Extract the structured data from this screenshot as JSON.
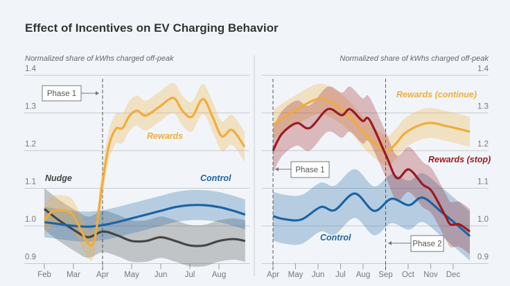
{
  "title": "Effect of Incentives on EV Charging Behavior",
  "colors": {
    "rewards": "#f0ac3a",
    "rewards_stop": "#9a1b20",
    "control": "#1b64a4",
    "nudge": "#454545",
    "background": "#f1f5f9"
  },
  "chart_data": [
    {
      "type": "line",
      "ylabel": "Normalized share of kWhs charged off-peak",
      "ylim": [
        0.9,
        1.4
      ],
      "yticks": [
        "1.4",
        "1.3",
        "1.2",
        "1.1",
        "1.0",
        "0.9"
      ],
      "xticks": [
        "Feb",
        "Mar",
        "Apr",
        "May",
        "Jun",
        "Jul",
        "Aug"
      ],
      "grid": true,
      "annotations": [
        {
          "label": "Phase 1",
          "at": "Apr"
        }
      ],
      "series": [
        {
          "name": "Nudge",
          "color": "#454545",
          "band": 0.055,
          "x": [
            2.0,
            2.5,
            3.0,
            3.5,
            4.0,
            4.5,
            5.0,
            5.5,
            6.0,
            6.5,
            7.0,
            7.5,
            8.0,
            8.5,
            8.9
          ],
          "y": [
            1.045,
            1.015,
            0.99,
            0.97,
            0.985,
            0.975,
            0.96,
            0.96,
            0.97,
            0.96,
            0.948,
            0.948,
            0.96,
            0.965,
            0.96
          ]
        },
        {
          "name": "Control",
          "color": "#1b64a4",
          "band": 0.04,
          "x": [
            2.0,
            2.5,
            3.0,
            3.5,
            4.0,
            4.5,
            5.0,
            5.5,
            6.0,
            6.5,
            7.0,
            7.5,
            8.0,
            8.5,
            8.9
          ],
          "y": [
            1.01,
            1.005,
            1.0,
            0.998,
            1.002,
            1.01,
            1.02,
            1.03,
            1.04,
            1.05,
            1.055,
            1.055,
            1.05,
            1.04,
            1.03
          ]
        },
        {
          "name": "Rewards",
          "color": "#f0ac3a",
          "band": 0.04,
          "x": [
            2.0,
            2.31,
            2.86,
            3.1,
            3.52,
            3.74,
            3.98,
            4.21,
            4.45,
            4.69,
            4.93,
            5.19,
            5.48,
            5.95,
            6.43,
            6.74,
            7.07,
            7.45,
            7.79,
            8.1,
            8.45,
            8.88
          ],
          "y": [
            1.013,
            1.04,
            1.037,
            1.013,
            0.952,
            0.97,
            1.105,
            1.21,
            1.257,
            1.26,
            1.293,
            1.306,
            1.293,
            1.316,
            1.34,
            1.306,
            1.29,
            1.337,
            1.288,
            1.238,
            1.255,
            1.21
          ]
        }
      ]
    },
    {
      "type": "line",
      "ylabel": "Normalized share of kWhs charged off-peak",
      "ylim": [
        0.9,
        1.4
      ],
      "yticks": [
        "1.4",
        "1.3",
        "1.2",
        "1.1",
        "1.0",
        "0.9"
      ],
      "xticks": [
        "Apr",
        "May",
        "Jun",
        "Jul",
        "Aug",
        "Sep",
        "Oct",
        "Nov",
        "Dec"
      ],
      "grid": true,
      "annotations": [
        {
          "label": "Phase 1",
          "at": "Apr"
        },
        {
          "label": "Phase 2",
          "at": "Sep"
        }
      ],
      "series": [
        {
          "name": "Control",
          "color": "#1b64a4",
          "band": 0.065,
          "x": [
            4.0,
            4.49,
            5.26,
            6.12,
            6.74,
            7.63,
            8.49,
            9.26,
            10.03,
            10.65,
            11.48,
            12.09,
            12.74
          ],
          "y": [
            1.026,
            1.018,
            1.017,
            1.05,
            1.042,
            1.086,
            1.04,
            1.072,
            1.055,
            1.075,
            1.037,
            1.007,
            0.973
          ]
        },
        {
          "name": "Rewards (continue)",
          "color": "#f0ac3a",
          "band": 0.04,
          "x": [
            4.03,
            4.8,
            5.97,
            6.65,
            7.35,
            8.18,
            9.0,
            9.4,
            9.94,
            10.86,
            11.78,
            12.74
          ],
          "y": [
            1.27,
            1.3,
            1.337,
            1.325,
            1.294,
            1.238,
            1.2,
            1.215,
            1.25,
            1.273,
            1.264,
            1.25
          ]
        },
        {
          "name": "Rewards (stop)",
          "color": "#9a1b20",
          "band": 0.06,
          "x": [
            4.0,
            4.4,
            5.05,
            5.63,
            6.43,
            7.05,
            7.42,
            7.97,
            8.28,
            9.0,
            9.5,
            10.03,
            10.65,
            11.05,
            11.66,
            11.88,
            12.28,
            12.74
          ],
          "y": [
            1.2,
            1.245,
            1.273,
            1.26,
            1.31,
            1.294,
            1.31,
            1.279,
            1.282,
            1.19,
            1.127,
            1.15,
            1.11,
            1.092,
            1.026,
            1.004,
            1.004,
            0.985
          ]
        }
      ]
    }
  ]
}
